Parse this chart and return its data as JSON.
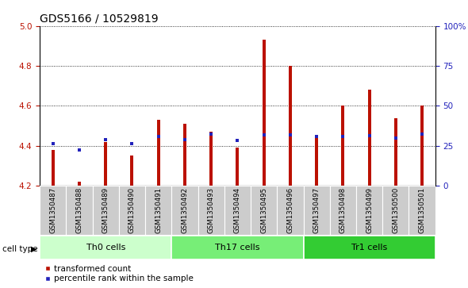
{
  "title": "GDS5166 / 10529819",
  "samples": [
    "GSM1350487",
    "GSM1350488",
    "GSM1350489",
    "GSM1350490",
    "GSM1350491",
    "GSM1350492",
    "GSM1350493",
    "GSM1350494",
    "GSM1350495",
    "GSM1350496",
    "GSM1350497",
    "GSM1350498",
    "GSM1350499",
    "GSM1350500",
    "GSM1350501"
  ],
  "red_values": [
    4.38,
    4.22,
    4.42,
    4.35,
    4.53,
    4.51,
    4.47,
    4.39,
    4.93,
    4.8,
    4.44,
    4.6,
    4.68,
    4.54,
    4.6
  ],
  "blue_values": [
    4.41,
    4.38,
    4.43,
    4.41,
    4.445,
    4.43,
    4.46,
    4.425,
    4.455,
    4.455,
    4.445,
    4.445,
    4.45,
    4.44,
    4.46
  ],
  "cell_groups": [
    {
      "label": "Th0 cells",
      "start": 0,
      "end": 5,
      "color": "#ccffcc"
    },
    {
      "label": "Th17 cells",
      "start": 5,
      "end": 10,
      "color": "#77ee77"
    },
    {
      "label": "Tr1 cells",
      "start": 10,
      "end": 15,
      "color": "#33cc33"
    }
  ],
  "ymin": 4.2,
  "ymax": 5.0,
  "yticks": [
    4.2,
    4.4,
    4.6,
    4.8,
    5.0
  ],
  "right_yticks": [
    0,
    25,
    50,
    75,
    100
  ],
  "right_ytick_labels": [
    "0",
    "25",
    "50",
    "75",
    "100%"
  ],
  "bar_color": "#bb1100",
  "dot_color": "#2222bb",
  "plot_bg": "#ffffff",
  "cell_type_label": "cell type",
  "legend_red": "transformed count",
  "legend_blue": "percentile rank within the sample",
  "title_fontsize": 10,
  "tick_fontsize": 7.5,
  "bar_width": 0.12
}
